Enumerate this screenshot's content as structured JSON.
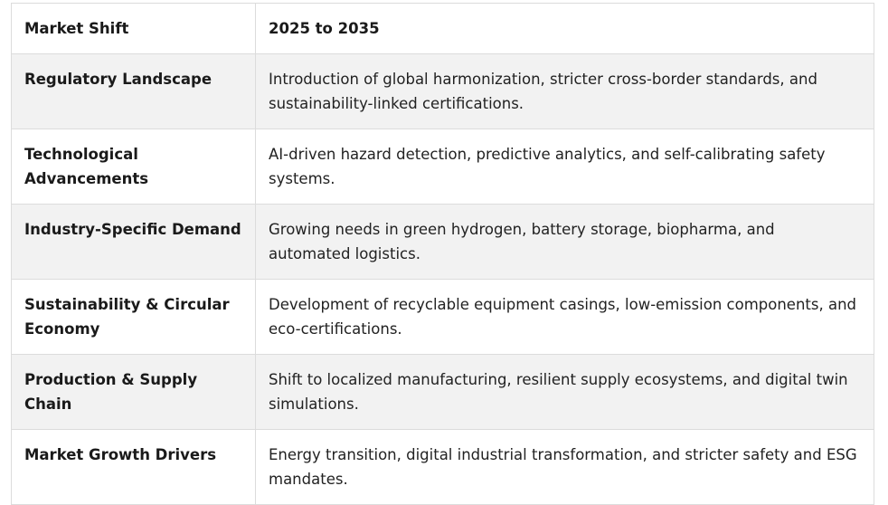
{
  "table": {
    "headers": [
      "Market Shift",
      "2025 to 2035"
    ],
    "rows": [
      {
        "label": "Regulatory Landscape",
        "value": "Introduction of global harmonization, stricter cross-border standards, and sustainability-linked certifications."
      },
      {
        "label": "Technological Advancements",
        "value": "AI-driven hazard detection, predictive analytics, and self-calibrating safety systems."
      },
      {
        "label": "Industry-Specific Demand",
        "value": "Growing needs in green hydrogen, battery storage, biopharma, and automated logistics."
      },
      {
        "label": "Sustainability & Circular Economy",
        "value": "Development of recyclable equipment casings, low-emission components, and eco-certifications."
      },
      {
        "label": "Production & Supply Chain",
        "value": "Shift to localized manufacturing, resilient supply ecosystems, and digital twin simulations."
      },
      {
        "label": "Market Growth Drivers",
        "value": "Energy transition, digital industrial transformation, and stricter safety and ESG mandates."
      }
    ]
  }
}
